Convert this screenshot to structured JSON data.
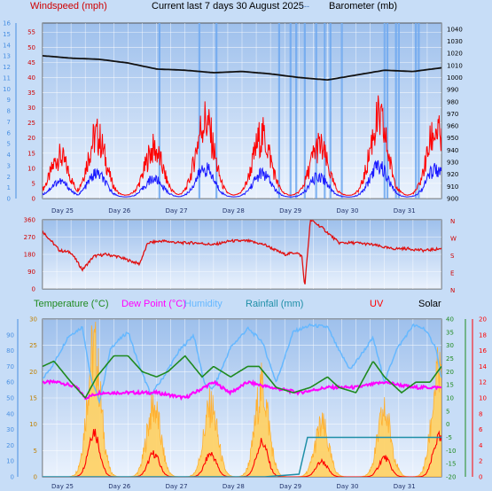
{
  "header": {
    "left_title": "Windspeed (mph)",
    "center_title": "Current last 7 days 30 August 2025",
    "center_sep": "---",
    "right_title": "Barometer (mb)"
  },
  "bottom_legend": {
    "temperature": "Temperature (°C)",
    "dewpoint": "Dew Point (°C)",
    "humidity": "Humidity",
    "rainfall": "Rainfall (mm)",
    "uv": "UV",
    "solar": "Solar"
  },
  "colors": {
    "background": "#c7ddf7",
    "plot_bg_top": "#9ec0ec",
    "plot_bg_bottom": "#eaf2fd",
    "gust": "#ff0000",
    "wind": "#1a1aff",
    "barometer": "#111111",
    "direction": "#e01010",
    "temperature": "#1f8a1f",
    "dewpoint": "#ff00ff",
    "humidity": "#66b8ff",
    "rainfall": "#1f8fa8",
    "uv": "#ff0000",
    "solar": "#ffb030",
    "solar_fill": "#ffd060"
  },
  "chart_data": [
    {
      "type": "line",
      "name": "wind",
      "x_labels": [
        "Day 25",
        "Day 26",
        "Day 27",
        "Day 28",
        "Day 29",
        "Day 30",
        "Day 31"
      ],
      "y_left_ticks": [
        "0",
        "5",
        "10",
        "15",
        "20",
        "25",
        "30",
        "35",
        "40",
        "45",
        "50",
        "55"
      ],
      "y_left_outer_ticks": [
        "0",
        "1",
        "2",
        "3",
        "4",
        "5",
        "6",
        "7",
        "8",
        "9",
        "10",
        "11",
        "12",
        "13",
        "14",
        "15",
        "16"
      ],
      "y_right_ticks": [
        "900",
        "910",
        "920",
        "930",
        "940",
        "950",
        "960",
        "970",
        "980",
        "990",
        "1000",
        "1010",
        "1020",
        "1030",
        "1040"
      ],
      "ylim_left": [
        0,
        58
      ],
      "ylim_right": [
        900,
        1045
      ],
      "barometer": {
        "day": [
          0,
          0.5,
          1,
          1.5,
          2,
          2.5,
          3,
          3.5,
          4,
          4.5,
          5,
          5.5,
          6,
          6.5,
          7
        ],
        "mb": [
          1018,
          1016,
          1015,
          1012,
          1007,
          1006,
          1004,
          1005,
          1003,
          1000,
          998,
          1002,
          1006,
          1005,
          1008
        ]
      },
      "gust_peaks": {
        "day": [
          0.3,
          0.95,
          1.95,
          2.85,
          3.85,
          4.85,
          5.9,
          6.9
        ],
        "mph": [
          15,
          23,
          18,
          29,
          23,
          19,
          29,
          25
        ]
      },
      "wind_peaks": {
        "day": [
          0.3,
          0.95,
          1.95,
          2.85,
          3.85,
          4.85,
          5.9,
          6.9
        ],
        "mph": [
          6,
          9,
          7,
          11,
          9,
          8,
          12,
          11
        ]
      },
      "fade_days": [
        2.05,
        2.75,
        3.05,
        4.15,
        4.35,
        4.45,
        4.6,
        4.8,
        4.95,
        5.05,
        5.25,
        6.0,
        6.05,
        6.2,
        6.25,
        6.55,
        6.6
      ]
    },
    {
      "type": "line",
      "name": "wind_direction",
      "y_left_ticks": [
        "0",
        "90",
        "180",
        "270",
        "360"
      ],
      "y_right_labels": [
        "N",
        "W",
        "S",
        "E",
        "N"
      ],
      "ylim": [
        0,
        360
      ],
      "series": {
        "day": [
          0,
          0.15,
          0.3,
          0.5,
          0.7,
          0.9,
          1.1,
          1.3,
          1.5,
          1.7,
          1.85,
          2.1,
          2.4,
          2.7,
          3.0,
          3.3,
          3.6,
          3.9,
          4.1,
          4.25,
          4.45,
          4.55,
          4.6,
          4.7,
          4.9,
          5.2,
          5.5,
          5.8,
          6.1,
          6.4,
          6.7,
          7.0
        ],
        "deg": [
          300,
          250,
          200,
          190,
          100,
          170,
          180,
          170,
          150,
          130,
          240,
          250,
          240,
          240,
          230,
          250,
          250,
          230,
          200,
          180,
          190,
          170,
          10,
          360,
          320,
          240,
          240,
          230,
          210,
          210,
          200,
          210
        ]
      }
    },
    {
      "type": "line",
      "name": "temperature_solar",
      "y_left_outer_ticks": [
        "0",
        "10",
        "20",
        "30",
        "40",
        "50",
        "60",
        "70",
        "80",
        "90"
      ],
      "y_left_ticks": [
        "0",
        "5",
        "10",
        "15",
        "20",
        "25",
        "30"
      ],
      "y_right_ticks": [
        "-20",
        "-15",
        "-10",
        "-5",
        "0",
        "5",
        "10",
        "15",
        "20",
        "25",
        "30",
        "35",
        "40"
      ],
      "y_right_outer_ticks": [
        "0",
        "2",
        "4",
        "6",
        "8",
        "10",
        "12",
        "14",
        "16",
        "18",
        "20"
      ],
      "ylim_temp": [
        0,
        30
      ],
      "temperature": {
        "day": [
          0,
          0.2,
          0.5,
          0.75,
          0.95,
          1.25,
          1.5,
          1.75,
          2.0,
          2.2,
          2.5,
          2.8,
          3.0,
          3.3,
          3.6,
          3.8,
          4.1,
          4.4,
          4.7,
          5.0,
          5.2,
          5.5,
          5.8,
          6.0,
          6.3,
          6.55,
          6.8,
          7.0
        ],
        "c": [
          21,
          22,
          18,
          15,
          19,
          23,
          23,
          20,
          19,
          20,
          23,
          19,
          21,
          19,
          21,
          21,
          17,
          16,
          17,
          19,
          17,
          16,
          22,
          19,
          16,
          18,
          18,
          21
        ]
      },
      "dewpoint": {
        "day": [
          0,
          0.3,
          0.6,
          0.75,
          1.0,
          1.5,
          2.0,
          2.5,
          3.0,
          3.3,
          3.6,
          4.0,
          4.5,
          5.0,
          5.5,
          6.0,
          6.5,
          7.0
        ],
        "c": [
          18,
          18,
          17,
          15,
          16,
          16,
          16,
          15,
          18,
          16,
          18,
          17,
          16,
          17,
          17,
          18,
          17,
          17
        ]
      },
      "humidity": {
        "day": [
          0,
          0.2,
          0.45,
          0.7,
          0.85,
          1.0,
          1.2,
          1.5,
          1.7,
          1.9,
          2.1,
          2.4,
          2.65,
          2.85,
          3.0,
          3.3,
          3.6,
          3.85,
          4.1,
          4.4,
          4.7,
          5.0,
          5.2,
          5.4,
          5.8,
          6.0,
          6.2,
          6.5,
          6.7,
          6.9,
          7.0
        ],
        "pct": [
          62,
          72,
          89,
          95,
          62,
          48,
          82,
          92,
          70,
          52,
          62,
          80,
          90,
          58,
          56,
          82,
          94,
          86,
          60,
          92,
          96,
          95,
          80,
          68,
          88,
          60,
          80,
          96,
          94,
          82,
          62
        ]
      },
      "rainfall": {
        "day": [
          0,
          3.9,
          4.5,
          4.65,
          4.7,
          5.2,
          6.2,
          7.0
        ],
        "mm": [
          0,
          0,
          1,
          15,
          15,
          15,
          15,
          15
        ]
      },
      "solar_peaks": {
        "day": [
          0.9,
          1.95,
          2.95,
          3.85,
          4.9,
          6.0,
          6.95
        ],
        "scale": [
          1.0,
          0.55,
          0.55,
          0.7,
          0.4,
          0.5,
          0.8
        ]
      },
      "uv_peaks": {
        "day": [
          0.9,
          1.95,
          2.95,
          3.85,
          4.9,
          6.0,
          6.95
        ],
        "uv": [
          6,
          3,
          3,
          4.5,
          2,
          2.5,
          5
        ]
      }
    }
  ]
}
